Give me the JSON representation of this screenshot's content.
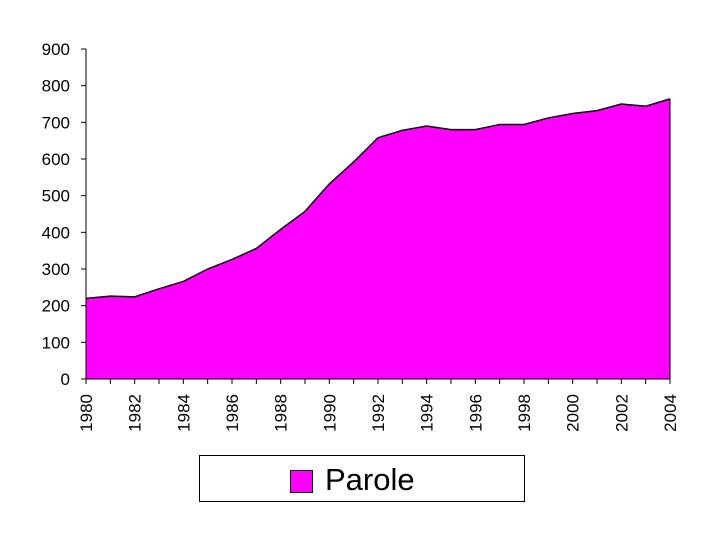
{
  "chart_data": {
    "type": "area",
    "x": [
      1980,
      1981,
      1982,
      1983,
      1984,
      1985,
      1986,
      1987,
      1988,
      1989,
      1990,
      1991,
      1992,
      1993,
      1994,
      1995,
      1996,
      1997,
      1998,
      1999,
      2000,
      2001,
      2002,
      2003,
      2004
    ],
    "series": [
      {
        "name": "Parole",
        "color": "#ff00ff",
        "values": [
          220,
          226,
          224,
          246,
          266,
          300,
          326,
          356,
          408,
          457,
          532,
          592,
          658,
          678,
          690,
          680,
          680,
          694,
          694,
          712,
          724,
          732,
          750,
          744,
          764
        ]
      }
    ],
    "x_tick_labels": [
      "1980",
      "1982",
      "1984",
      "1986",
      "1988",
      "1990",
      "1992",
      "1994",
      "1996",
      "1998",
      "2000",
      "2002",
      "2004"
    ],
    "y_tick_labels": [
      "0",
      "100",
      "200",
      "300",
      "400",
      "500",
      "600",
      "700",
      "800",
      "900"
    ],
    "ylim": [
      0,
      900
    ],
    "xlim": [
      1980,
      2004
    ],
    "grid": false,
    "legend_position": "bottom",
    "title": "",
    "xlabel": "",
    "ylabel": ""
  },
  "legend": {
    "label": "Parole",
    "color": "#ff00ff"
  }
}
